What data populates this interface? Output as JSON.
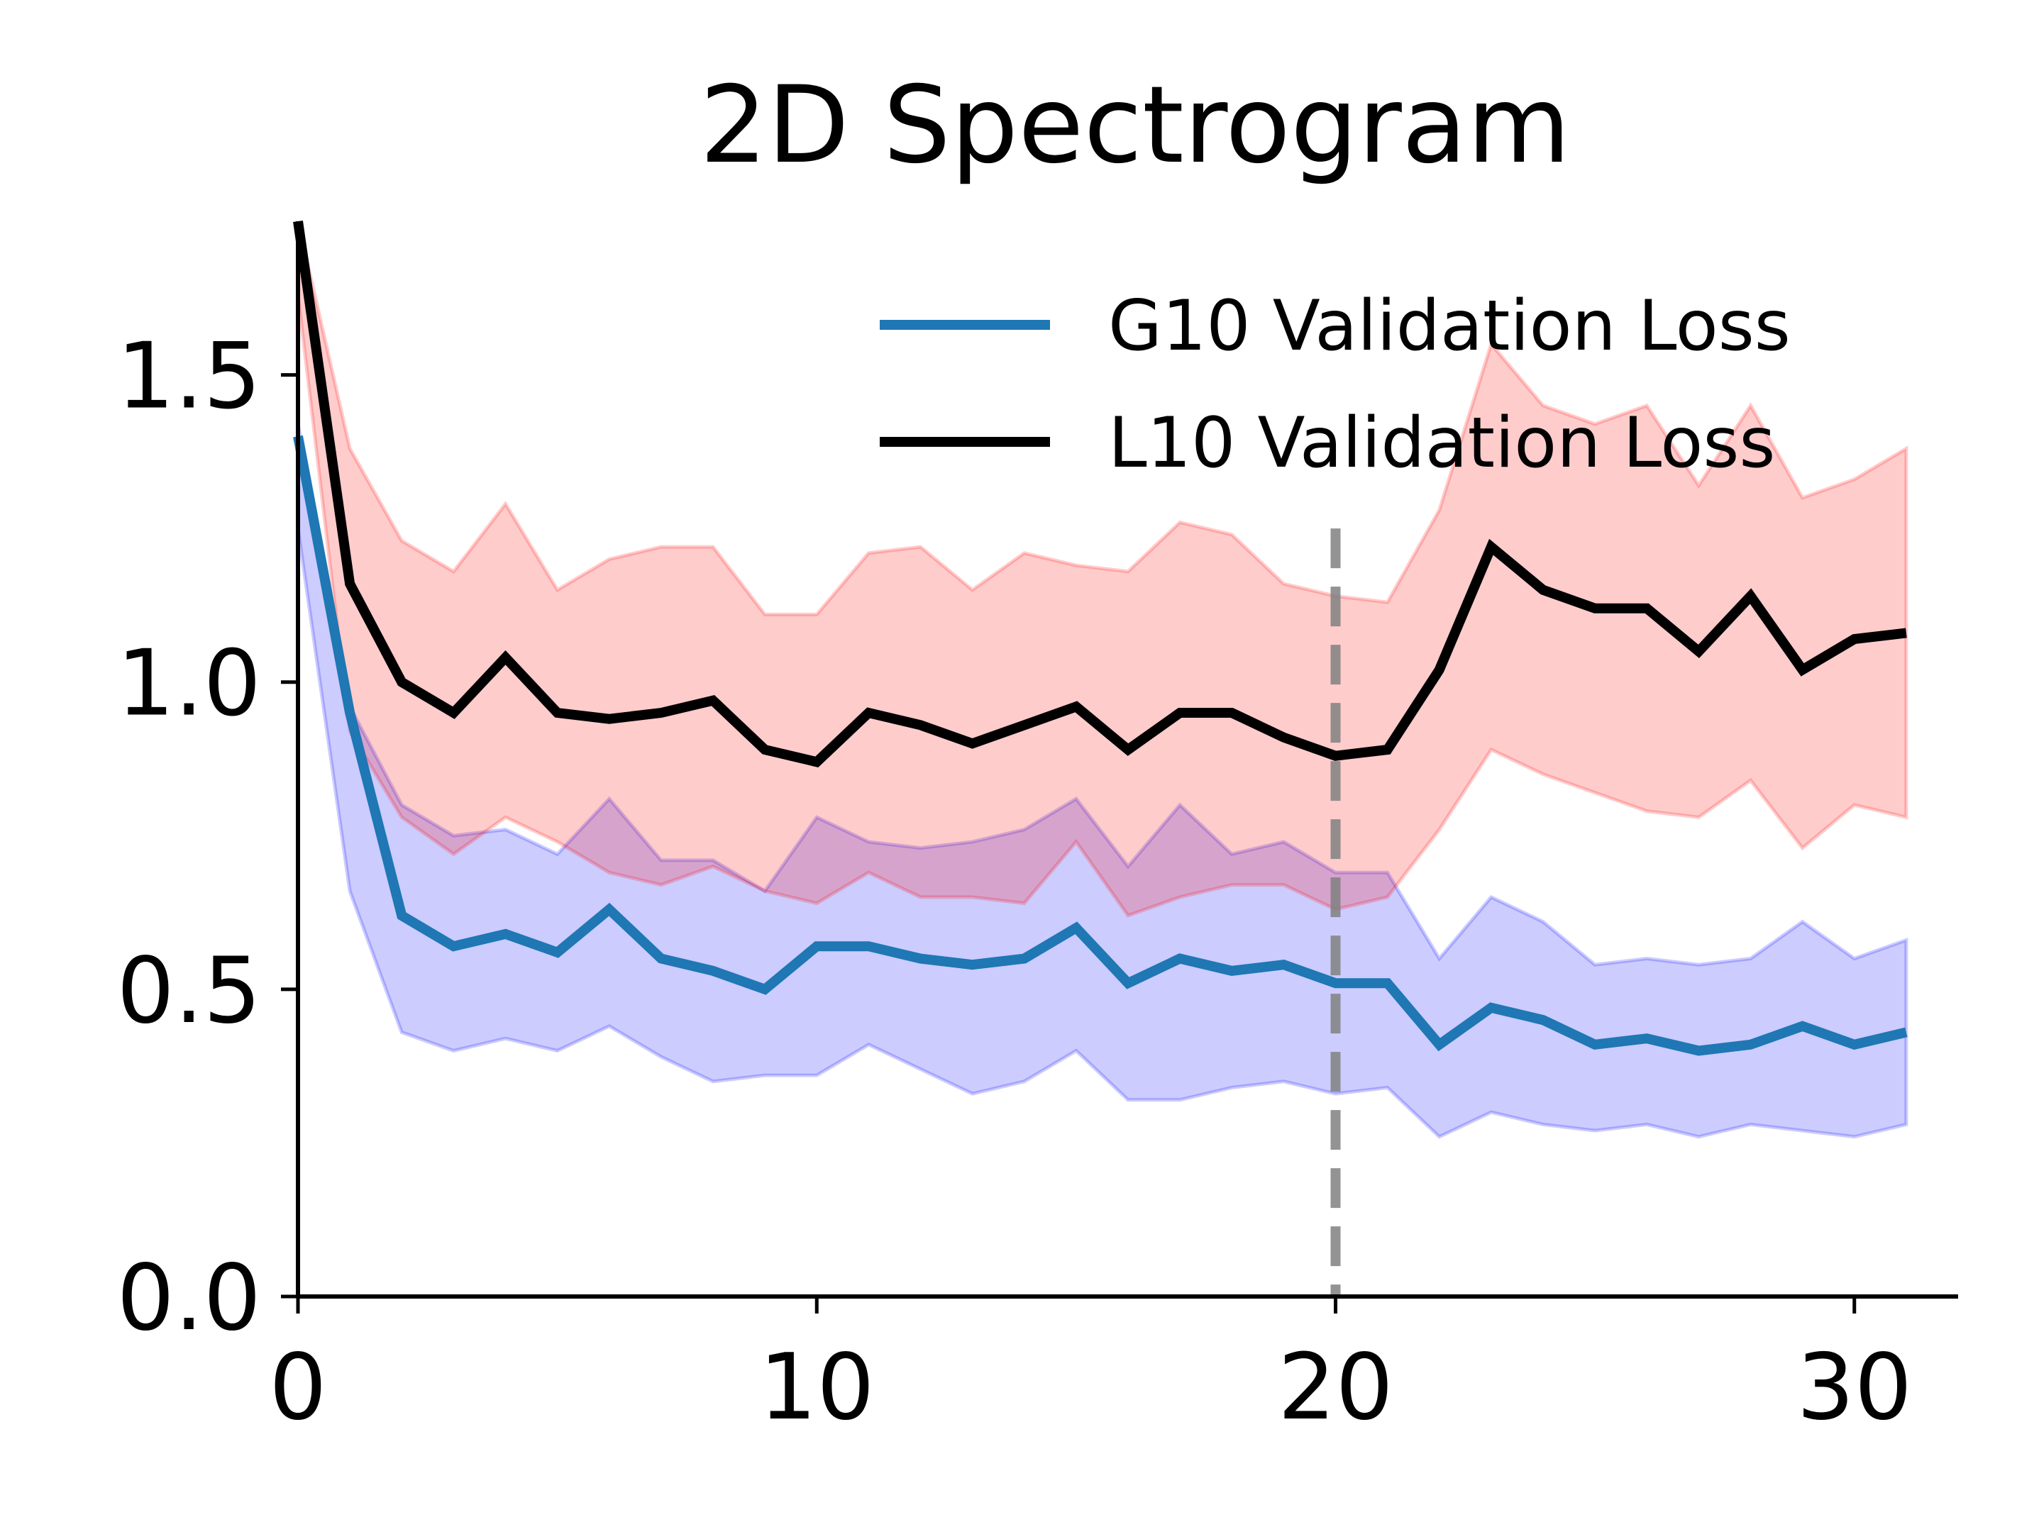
{
  "chart_data": {
    "type": "line",
    "title": "2D Spectrogram",
    "xlabel": "",
    "ylabel": "",
    "xlim": [
      0,
      32
    ],
    "ylim": [
      0,
      1.75
    ],
    "xticks": [
      0,
      10,
      20,
      30
    ],
    "xtick_labels": [
      "0",
      "10",
      "20",
      "30"
    ],
    "yticks": [
      0,
      0.5,
      1.0,
      1.5
    ],
    "ytick_labels": [
      "0.0",
      "0.5",
      "1.0",
      "1.5"
    ],
    "grid": false,
    "legend_position": "top-right",
    "vline_x": 20,
    "x": [
      0,
      1,
      2,
      3,
      4,
      5,
      6,
      7,
      8,
      9,
      10,
      11,
      12,
      13,
      14,
      15,
      16,
      17,
      18,
      19,
      20,
      21,
      22,
      23,
      24,
      25,
      26,
      27,
      28,
      29,
      30,
      31
    ],
    "series": [
      {
        "name": "G10 Validation Loss",
        "color": "#1f77b4",
        "band_color": "#0000ff",
        "values": [
          1.4,
          0.95,
          0.62,
          0.57,
          0.59,
          0.56,
          0.63,
          0.55,
          0.53,
          0.5,
          0.57,
          0.57,
          0.55,
          0.54,
          0.55,
          0.6,
          0.51,
          0.55,
          0.53,
          0.54,
          0.51,
          0.51,
          0.41,
          0.47,
          0.45,
          0.41,
          0.42,
          0.4,
          0.41,
          0.44,
          0.41,
          0.43
        ],
        "upper": [
          1.42,
          0.96,
          0.8,
          0.75,
          0.76,
          0.72,
          0.81,
          0.71,
          0.71,
          0.66,
          0.78,
          0.74,
          0.73,
          0.74,
          0.76,
          0.81,
          0.7,
          0.8,
          0.72,
          0.74,
          0.69,
          0.69,
          0.55,
          0.65,
          0.61,
          0.54,
          0.55,
          0.54,
          0.55,
          0.61,
          0.55,
          0.58
        ],
        "lower": [
          1.25,
          0.66,
          0.43,
          0.4,
          0.42,
          0.4,
          0.44,
          0.39,
          0.35,
          0.36,
          0.36,
          0.41,
          0.37,
          0.33,
          0.35,
          0.4,
          0.32,
          0.32,
          0.34,
          0.35,
          0.33,
          0.34,
          0.26,
          0.3,
          0.28,
          0.27,
          0.28,
          0.26,
          0.28,
          0.27,
          0.26,
          0.28
        ]
      },
      {
        "name": "L10 Validation Loss",
        "color": "#000000",
        "band_color": "#ff0000",
        "values": [
          1.75,
          1.16,
          1.0,
          0.95,
          1.04,
          0.95,
          0.94,
          0.95,
          0.97,
          0.89,
          0.87,
          0.95,
          0.93,
          0.9,
          0.93,
          0.96,
          0.89,
          0.95,
          0.95,
          0.91,
          0.88,
          0.89,
          1.02,
          1.22,
          1.15,
          1.12,
          1.12,
          1.05,
          1.14,
          1.02,
          1.07,
          1.08
        ],
        "upper": [
          1.75,
          1.38,
          1.23,
          1.18,
          1.29,
          1.15,
          1.2,
          1.22,
          1.22,
          1.11,
          1.11,
          1.21,
          1.22,
          1.15,
          1.21,
          1.19,
          1.18,
          1.26,
          1.24,
          1.16,
          1.14,
          1.13,
          1.28,
          1.55,
          1.45,
          1.42,
          1.45,
          1.32,
          1.45,
          1.3,
          1.33,
          1.38
        ],
        "lower": [
          1.63,
          0.92,
          0.78,
          0.72,
          0.78,
          0.74,
          0.69,
          0.67,
          0.7,
          0.66,
          0.64,
          0.69,
          0.65,
          0.65,
          0.64,
          0.74,
          0.62,
          0.65,
          0.67,
          0.67,
          0.63,
          0.65,
          0.76,
          0.89,
          0.85,
          0.82,
          0.79,
          0.78,
          0.84,
          0.73,
          0.8,
          0.78
        ]
      }
    ]
  }
}
